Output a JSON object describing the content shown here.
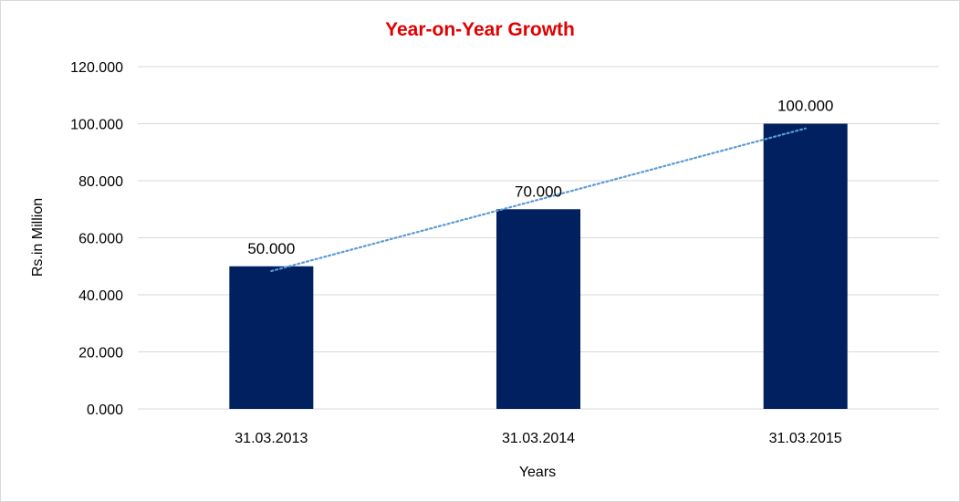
{
  "chart_data": {
    "type": "bar",
    "title": "Year-on-Year Growth",
    "xlabel": "Years",
    "ylabel": "Rs.in Million",
    "categories": [
      "31.03.2013",
      "31.03.2014",
      "31.03.2015"
    ],
    "values": [
      50,
      70,
      100
    ],
    "data_labels": [
      "50.000",
      "70.000",
      "100.000"
    ],
    "ylim": [
      0,
      120
    ],
    "y_ticks": [
      0,
      20,
      40,
      60,
      80,
      100,
      120
    ],
    "y_tick_labels": [
      "0.000",
      "20.000",
      "40.000",
      "60.000",
      "80.000",
      "100.000",
      "120.000"
    ],
    "grid": true,
    "trendline": {
      "type": "linear",
      "style": "dotted"
    },
    "colors": {
      "bar": "#002060",
      "title": "#e00000",
      "trendline": "#5b9bd5",
      "grid": "#d9d9d9"
    }
  }
}
